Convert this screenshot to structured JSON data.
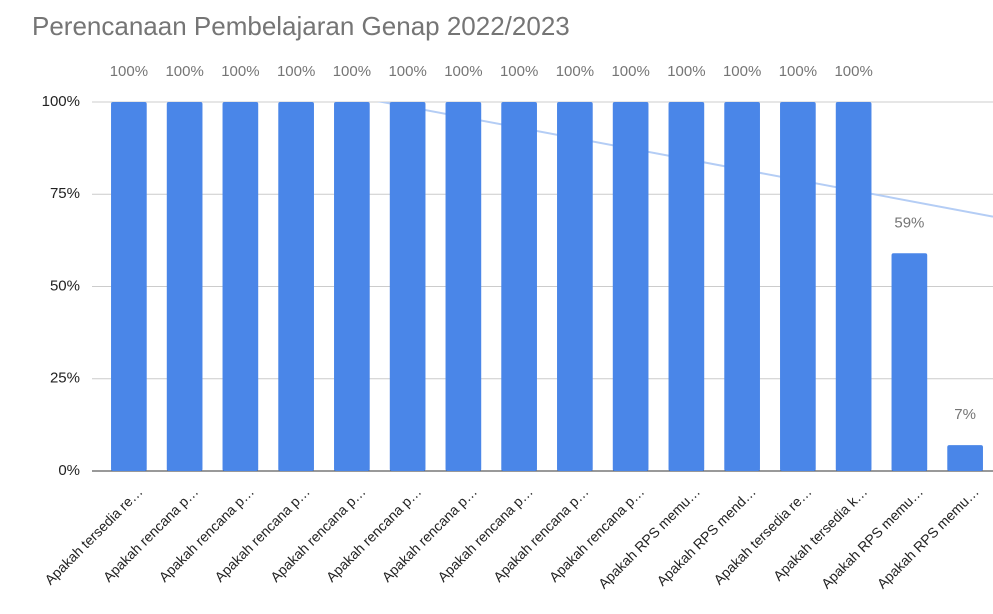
{
  "chart_data": {
    "type": "bar",
    "title": "Perencanaan Pembelajaran Genap 2022/2023",
    "categories": [
      "Apakah tersedia re…",
      "Apakah rencana p…",
      "Apakah rencana p…",
      "Apakah rencana p…",
      "Apakah rencana p…",
      "Apakah rencana p…",
      "Apakah rencana p…",
      "Apakah rencana p…",
      "Apakah rencana p…",
      "Apakah rencana p…",
      "Apakah RPS memu…",
      "Apakah RPS mend…",
      "Apakah tersedia re…",
      "Apakah tersedia k…",
      "Apakah RPS memu…",
      "Apakah RPS memu…"
    ],
    "values": [
      100,
      100,
      100,
      100,
      100,
      100,
      100,
      100,
      100,
      100,
      100,
      100,
      100,
      100,
      59,
      7
    ],
    "value_labels": [
      "100%",
      "100%",
      "100%",
      "100%",
      "100%",
      "100%",
      "100%",
      "100%",
      "100%",
      "100%",
      "100%",
      "100%",
      "100%",
      "100%",
      "59%",
      "7%"
    ],
    "color": "#4a86e8",
    "trendline": true,
    "trendline_color": "#b4cdf5",
    "ylim": [
      0,
      100
    ],
    "yticks": [
      {
        "value": 0,
        "label": "0%"
      },
      {
        "value": 25,
        "label": "25%"
      },
      {
        "value": 50,
        "label": "50%"
      },
      {
        "value": 75,
        "label": "75%"
      },
      {
        "value": 100,
        "label": "100%"
      }
    ],
    "grid": true
  }
}
